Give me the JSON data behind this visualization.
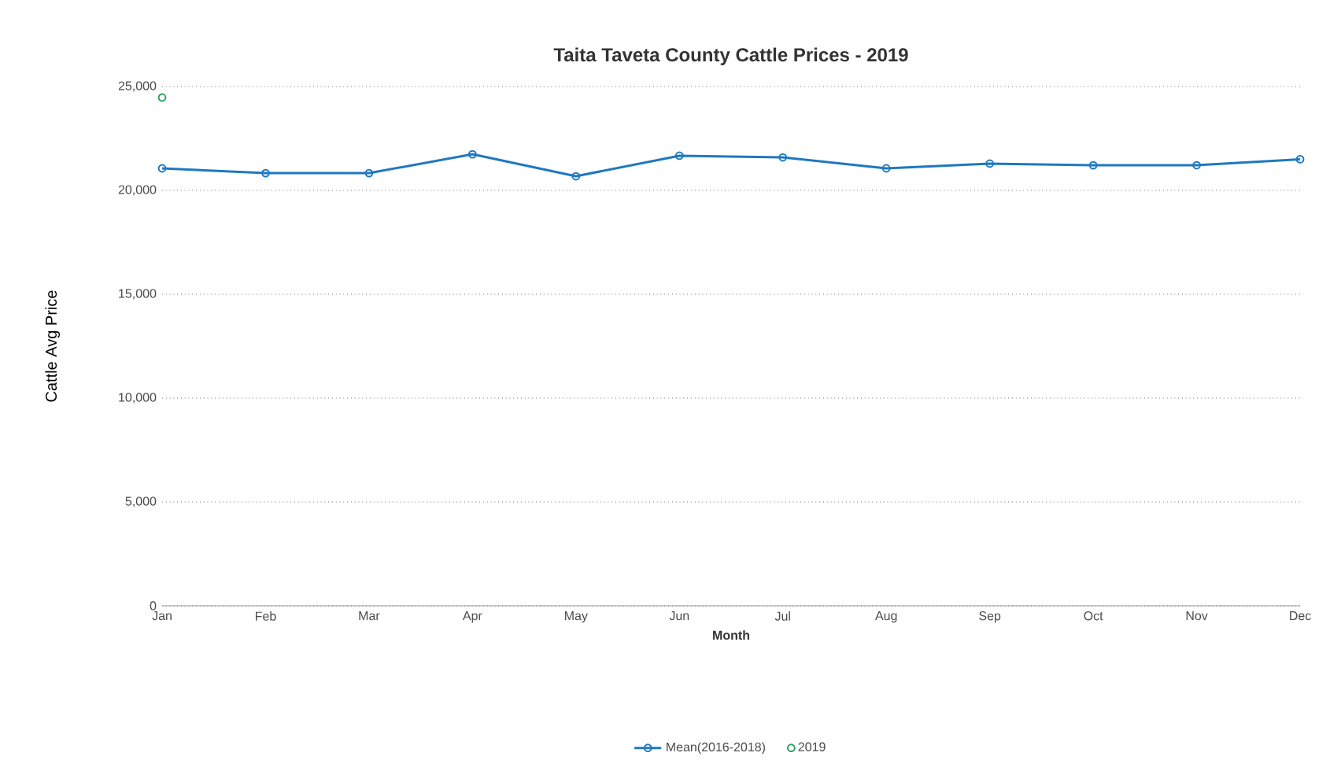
{
  "chart_data": {
    "type": "line",
    "title": "Taita Taveta County Cattle Prices - 2019",
    "xlabel": "Month",
    "ylabel": "Cattle Avg Price",
    "categories": [
      "Jan",
      "Feb",
      "Mar",
      "Apr",
      "May",
      "Jun",
      "Jul",
      "Aug",
      "Sep",
      "Oct",
      "Nov",
      "Dec"
    ],
    "series": [
      {
        "name": "Mean(2016-2018)",
        "color": "#1f78c1",
        "values": [
          21060,
          20830,
          20830,
          21740,
          20680,
          21670,
          21590,
          21060,
          21290,
          21210,
          21210,
          21500
        ]
      },
      {
        "name": "2019",
        "color": "#2ca05a",
        "type": "scatter",
        "values": [
          24470,
          null,
          null,
          null,
          null,
          null,
          null,
          null,
          null,
          null,
          null,
          null
        ]
      }
    ],
    "ylim": [
      0,
      25000
    ],
    "yticks": [
      {
        "value": 0,
        "label": "0"
      },
      {
        "value": 5000,
        "label": "5,000"
      },
      {
        "value": 10000,
        "label": "10,000"
      },
      {
        "value": 15000,
        "label": "15,000"
      },
      {
        "value": 20000,
        "label": "20,000"
      },
      {
        "value": 25000,
        "label": "25,000"
      }
    ],
    "grid": "y",
    "legend": "bottom",
    "marker": "circle"
  }
}
